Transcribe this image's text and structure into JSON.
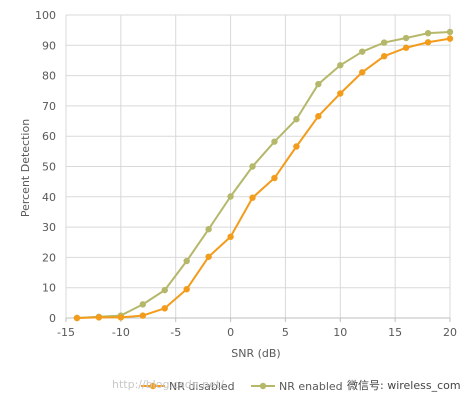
{
  "watermark": {
    "url_text": "http://blog.csdn.net/",
    "wechat_text": "微信号: wireless_com"
  },
  "chart_data": {
    "type": "line",
    "title": "",
    "xlabel": "SNR (dB)",
    "ylabel": "Percent Detection",
    "xlim": [
      -15,
      20
    ],
    "ylim": [
      0,
      100
    ],
    "xticks": [
      -15,
      -10,
      -5,
      0,
      5,
      10,
      15,
      20
    ],
    "yticks": [
      0,
      10,
      20,
      30,
      40,
      50,
      60,
      70,
      80,
      90,
      100
    ],
    "grid": true,
    "legend_position": "bottom",
    "series": [
      {
        "name": "NR disabled",
        "color": "#f39c1c",
        "marker": "circle",
        "x": [
          -14,
          -12,
          -10,
          -8,
          -6,
          -4,
          -2,
          0,
          2,
          4,
          6,
          8,
          10,
          12,
          14,
          16,
          18,
          20
        ],
        "y": [
          0,
          0.2,
          0.2,
          0.8,
          3.2,
          9.5,
          20.2,
          26.8,
          39.7,
          46.2,
          56.6,
          66.6,
          74.1,
          81.1,
          86.4,
          89.2,
          91.0,
          92.2
        ]
      },
      {
        "name": "NR enabled",
        "color": "#b5b86a",
        "marker": "circle",
        "x": [
          -14,
          -12,
          -10,
          -8,
          -6,
          -4,
          -2,
          0,
          2,
          4,
          6,
          8,
          10,
          12,
          14,
          16,
          18,
          20
        ],
        "y": [
          0,
          0.4,
          0.8,
          4.5,
          9.2,
          18.8,
          29.3,
          40.1,
          50.0,
          58.2,
          65.6,
          77.2,
          83.4,
          87.9,
          90.9,
          92.4,
          94.0,
          94.4
        ]
      }
    ]
  }
}
